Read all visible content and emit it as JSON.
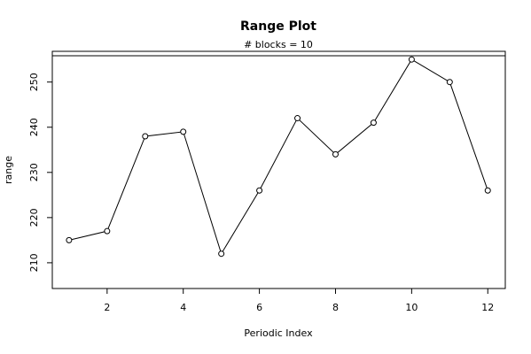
{
  "chart_data": {
    "type": "line",
    "title": "Range Plot",
    "subtitle": "# blocks =  10",
    "x_label": "Periodic Index",
    "y_label": "range",
    "x": [
      1,
      2,
      3,
      4,
      5,
      6,
      7,
      8,
      9,
      10,
      11,
      12
    ],
    "series": [
      {
        "name": "range",
        "color": "#000000",
        "values": [
          215,
          217,
          238,
          239,
          212,
          226,
          242,
          234,
          241,
          255,
          250,
          226
        ]
      }
    ],
    "xlim": [
      0.56,
      12.46
    ],
    "ylim": [
      204.3,
      256.8
    ],
    "xticks": [
      2,
      4,
      6,
      8,
      10,
      12
    ],
    "yticks": [
      210,
      220,
      230,
      240,
      250
    ]
  }
}
